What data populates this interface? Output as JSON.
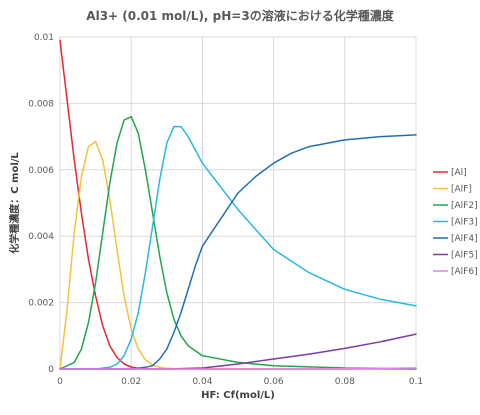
{
  "chart_data": {
    "type": "line",
    "title": "Al3+ (0.01 mol/L), pH=3の溶液における化学種濃度",
    "xlabel": "HF: Cf(mol/L)",
    "ylabel": "化学種濃度：C mol/L",
    "xlim": [
      0,
      0.1
    ],
    "ylim": [
      0,
      0.01
    ],
    "xticks": [
      "0",
      "0.02",
      "0.04",
      "0.06",
      "0.08",
      "0.1"
    ],
    "yticks": [
      "0",
      "0.002",
      "0.004",
      "0.006",
      "0.008",
      "0.01"
    ],
    "grid": true,
    "legend_position": "right",
    "series": [
      {
        "name": "[Al]",
        "color": "#e8272a",
        "x": [
          0,
          0.002,
          0.004,
          0.006,
          0.008,
          0.01,
          0.012,
          0.014,
          0.016,
          0.018,
          0.02,
          0.022,
          0.024,
          0.026,
          0.028,
          0.03,
          0.04,
          0.1
        ],
        "y": [
          0.0099,
          0.0081,
          0.0063,
          0.0047,
          0.0033,
          0.0022,
          0.0013,
          0.0007,
          0.00035,
          0.00015,
          6e-05,
          2e-05,
          1e-05,
          0,
          0,
          0,
          0,
          0
        ]
      },
      {
        "name": "[AlF]",
        "color": "#f6c23e",
        "x": [
          0,
          0.002,
          0.004,
          0.006,
          0.008,
          0.01,
          0.012,
          0.014,
          0.016,
          0.018,
          0.02,
          0.022,
          0.024,
          0.026,
          0.028,
          0.03,
          0.034,
          0.04,
          0.1
        ],
        "y": [
          0,
          0.0018,
          0.0041,
          0.0058,
          0.0067,
          0.00685,
          0.0063,
          0.0051,
          0.0036,
          0.0022,
          0.0012,
          0.0006,
          0.00028,
          0.00012,
          5e-05,
          2e-05,
          0,
          0,
          0
        ]
      },
      {
        "name": "[AlF2]",
        "color": "#21a650",
        "x": [
          0,
          0.004,
          0.006,
          0.008,
          0.01,
          0.012,
          0.014,
          0.016,
          0.018,
          0.02,
          0.022,
          0.024,
          0.026,
          0.028,
          0.03,
          0.032,
          0.034,
          0.036,
          0.04,
          0.05,
          0.06,
          0.08,
          0.1
        ],
        "y": [
          0,
          0.0002,
          0.0006,
          0.0014,
          0.0026,
          0.0041,
          0.0056,
          0.0068,
          0.0075,
          0.0076,
          0.0071,
          0.006,
          0.0047,
          0.0034,
          0.0023,
          0.0015,
          0.001,
          0.0007,
          0.0004,
          0.0002,
          0.0001,
          3e-05,
          1e-05
        ]
      },
      {
        "name": "[AlF3]",
        "color": "#2ab8e0",
        "x": [
          0,
          0.01,
          0.014,
          0.016,
          0.018,
          0.02,
          0.022,
          0.024,
          0.026,
          0.028,
          0.03,
          0.032,
          0.034,
          0.036,
          0.038,
          0.04,
          0.045,
          0.05,
          0.055,
          0.06,
          0.07,
          0.08,
          0.09,
          0.1
        ],
        "y": [
          0,
          0,
          5e-05,
          0.00015,
          0.0004,
          0.0009,
          0.0017,
          0.0029,
          0.0043,
          0.0057,
          0.0068,
          0.0073,
          0.0073,
          0.007,
          0.0066,
          0.0062,
          0.0055,
          0.0048,
          0.0042,
          0.0036,
          0.0029,
          0.0024,
          0.0021,
          0.0019
        ]
      },
      {
        "name": "[AlF4]",
        "color": "#1e6fb8",
        "x": [
          0,
          0.02,
          0.024,
          0.026,
          0.028,
          0.03,
          0.032,
          0.034,
          0.036,
          0.038,
          0.04,
          0.045,
          0.05,
          0.055,
          0.06,
          0.065,
          0.07,
          0.08,
          0.09,
          0.1
        ],
        "y": [
          0,
          0,
          5e-05,
          0.0001,
          0.0003,
          0.0006,
          0.0011,
          0.0017,
          0.0024,
          0.0031,
          0.0037,
          0.0045,
          0.0053,
          0.0058,
          0.0062,
          0.0065,
          0.0067,
          0.0069,
          0.007,
          0.00705
        ]
      },
      {
        "name": "[AlF5]",
        "color": "#7a3da5",
        "x": [
          0,
          0.03,
          0.04,
          0.05,
          0.06,
          0.07,
          0.08,
          0.09,
          0.1
        ],
        "y": [
          0,
          0,
          3e-05,
          0.00015,
          0.0003,
          0.00045,
          0.00062,
          0.00082,
          0.00105
        ]
      },
      {
        "name": "[AlF6]",
        "color": "#e77ee2",
        "x": [
          0,
          0.04,
          0.06,
          0.08,
          0.1
        ],
        "y": [
          0,
          0,
          5e-06,
          1e-05,
          3e-05
        ]
      }
    ]
  }
}
